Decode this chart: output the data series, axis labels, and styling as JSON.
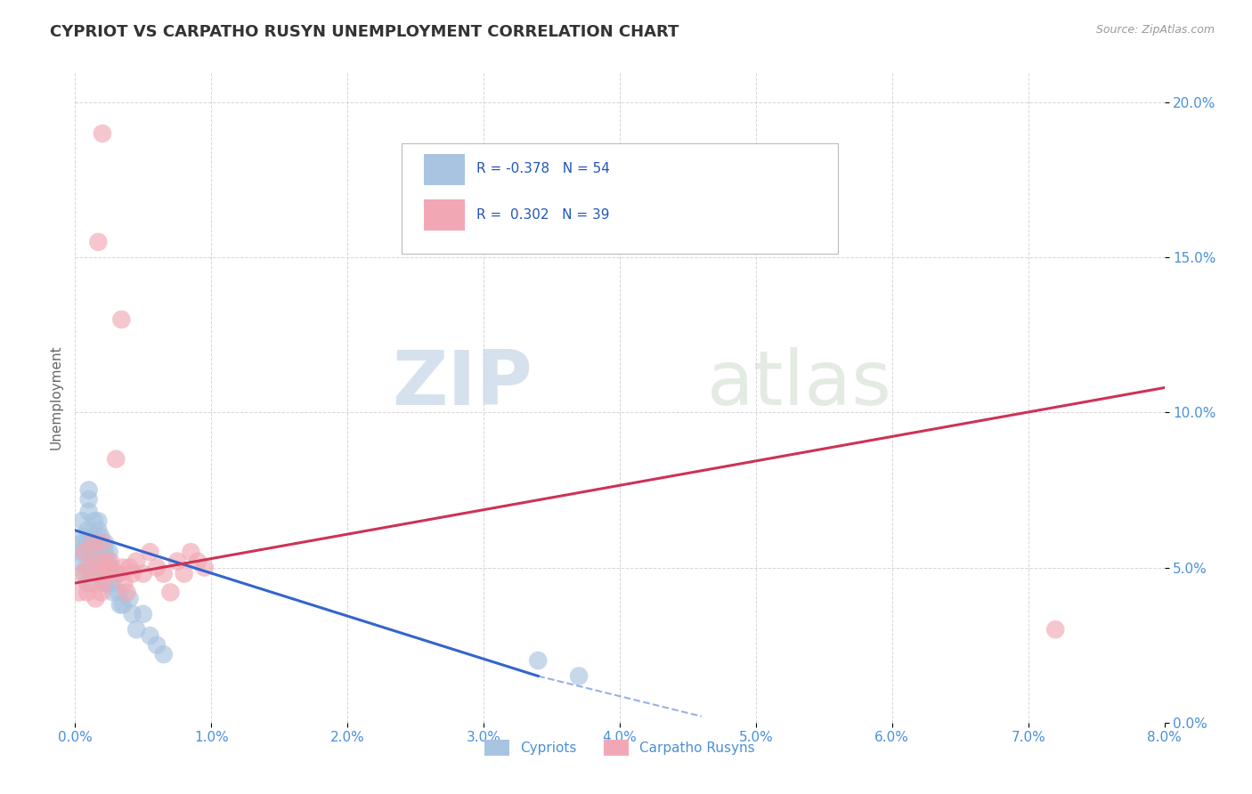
{
  "title": "CYPRIOT VS CARPATHO RUSYN UNEMPLOYMENT CORRELATION CHART",
  "source": "Source: ZipAtlas.com",
  "ylabel": "Unemployment",
  "xlim": [
    0.0,
    0.08
  ],
  "ylim": [
    0.0,
    0.21
  ],
  "xticks": [
    0.0,
    0.01,
    0.02,
    0.03,
    0.04,
    0.05,
    0.06,
    0.07,
    0.08
  ],
  "xticklabels": [
    "0.0%",
    "1.0%",
    "2.0%",
    "3.0%",
    "4.0%",
    "5.0%",
    "6.0%",
    "7.0%",
    "8.0%"
  ],
  "yticks": [
    0.0,
    0.05,
    0.1,
    0.15,
    0.2
  ],
  "yticklabels": [
    "0.0%",
    "5.0%",
    "10.0%",
    "15.0%",
    "20.0%"
  ],
  "legend_labels": [
    "Cypriots",
    "Carpatho Rusyns"
  ],
  "r_cypriot": -0.378,
  "n_cypriot": 54,
  "r_rusyn": 0.302,
  "n_rusyn": 39,
  "cypriot_color": "#a8c4e0",
  "rusyn_color": "#f2a8b4",
  "line_cypriot_color": "#3366cc",
  "line_rusyn_color": "#cc3355",
  "background_color": "#ffffff",
  "grid_color": "#cccccc",
  "watermark_zip": "ZIP",
  "watermark_atlas": "atlas",
  "cypriot_x": [
    0.0003,
    0.0004,
    0.0005,
    0.0005,
    0.0006,
    0.0007,
    0.0007,
    0.0008,
    0.0008,
    0.0009,
    0.0009,
    0.001,
    0.001,
    0.001,
    0.0012,
    0.0012,
    0.0013,
    0.0013,
    0.0014,
    0.0015,
    0.0015,
    0.0016,
    0.0017,
    0.0017,
    0.0018,
    0.0018,
    0.0019,
    0.0019,
    0.002,
    0.002,
    0.0021,
    0.0022,
    0.0022,
    0.0023,
    0.0023,
    0.0024,
    0.0025,
    0.0025,
    0.0026,
    0.0027,
    0.0028,
    0.003,
    0.0032,
    0.0033,
    0.0035,
    0.004,
    0.0042,
    0.0045,
    0.005,
    0.0055,
    0.006,
    0.0065,
    0.034,
    0.037
  ],
  "cypriot_y": [
    0.055,
    0.052,
    0.058,
    0.065,
    0.06,
    0.048,
    0.055,
    0.05,
    0.058,
    0.045,
    0.062,
    0.072,
    0.068,
    0.075,
    0.06,
    0.05,
    0.058,
    0.055,
    0.065,
    0.055,
    0.06,
    0.058,
    0.065,
    0.062,
    0.048,
    0.055,
    0.05,
    0.06,
    0.055,
    0.05,
    0.045,
    0.055,
    0.058,
    0.05,
    0.045,
    0.052,
    0.048,
    0.055,
    0.05,
    0.045,
    0.042,
    0.048,
    0.042,
    0.038,
    0.038,
    0.04,
    0.035,
    0.03,
    0.035,
    0.028,
    0.025,
    0.022,
    0.02,
    0.015
  ],
  "rusyn_x": [
    0.0003,
    0.0005,
    0.0007,
    0.0009,
    0.001,
    0.0012,
    0.0013,
    0.0015,
    0.0016,
    0.0017,
    0.0018,
    0.0019,
    0.002,
    0.0021,
    0.0022,
    0.0023,
    0.0025,
    0.0026,
    0.003,
    0.0032,
    0.0034,
    0.0036,
    0.0038,
    0.004,
    0.0042,
    0.0045,
    0.005,
    0.0055,
    0.006,
    0.0065,
    0.007,
    0.0075,
    0.008,
    0.0085,
    0.009,
    0.0095,
    0.072,
    0.0035,
    0.002
  ],
  "rusyn_y": [
    0.042,
    0.048,
    0.055,
    0.042,
    0.05,
    0.045,
    0.058,
    0.04,
    0.052,
    0.155,
    0.048,
    0.042,
    0.058,
    0.045,
    0.052,
    0.048,
    0.05,
    0.052,
    0.085,
    0.048,
    0.13,
    0.045,
    0.042,
    0.05,
    0.048,
    0.052,
    0.048,
    0.055,
    0.05,
    0.048,
    0.042,
    0.052,
    0.048,
    0.055,
    0.052,
    0.05,
    0.03,
    0.05,
    0.19
  ],
  "line_cypriot_x0": 0.0,
  "line_cypriot_y0": 0.062,
  "line_cypriot_x1": 0.034,
  "line_cypriot_y1": 0.015,
  "line_cypriot_dash_x1": 0.046,
  "line_cypriot_dash_y1": 0.002,
  "line_rusyn_x0": 0.0,
  "line_rusyn_y0": 0.045,
  "line_rusyn_x1": 0.08,
  "line_rusyn_y1": 0.108
}
